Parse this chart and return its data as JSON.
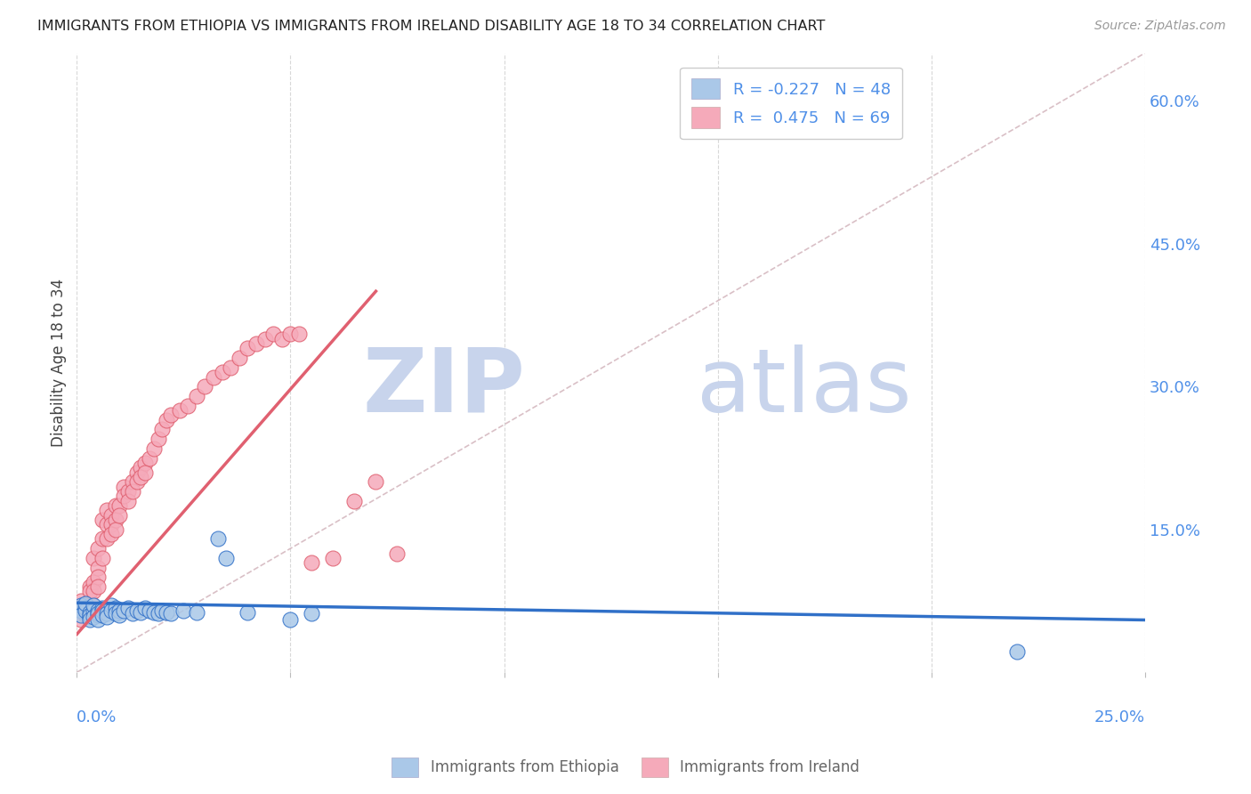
{
  "title": "IMMIGRANTS FROM ETHIOPIA VS IMMIGRANTS FROM IRELAND DISABILITY AGE 18 TO 34 CORRELATION CHART",
  "source": "Source: ZipAtlas.com",
  "ylabel": "Disability Age 18 to 34",
  "right_yticks": [
    0.0,
    0.15,
    0.3,
    0.45,
    0.6
  ],
  "right_yticklabels": [
    "",
    "15.0%",
    "30.0%",
    "45.0%",
    "60.0%"
  ],
  "xlim": [
    0.0,
    0.25
  ],
  "ylim": [
    0.0,
    0.65
  ],
  "ethiopia_R": -0.227,
  "ethiopia_N": 48,
  "ireland_R": 0.475,
  "ireland_N": 69,
  "ethiopia_color": "#aac8e8",
  "ireland_color": "#f5aaba",
  "ethiopia_line_color": "#3070c8",
  "ireland_line_color": "#e06070",
  "diagonal_color": "#d0b0b8",
  "watermark_color": "#c8d8f0",
  "legend_label_ethiopia": "Immigrants from Ethiopia",
  "legend_label_ireland": "Immigrants from Ireland",
  "ethiopia_x": [
    0.001,
    0.001,
    0.001,
    0.002,
    0.002,
    0.002,
    0.003,
    0.003,
    0.003,
    0.003,
    0.004,
    0.004,
    0.004,
    0.005,
    0.005,
    0.005,
    0.005,
    0.006,
    0.006,
    0.006,
    0.007,
    0.007,
    0.008,
    0.008,
    0.009,
    0.009,
    0.01,
    0.01,
    0.011,
    0.012,
    0.013,
    0.014,
    0.015,
    0.016,
    0.017,
    0.018,
    0.019,
    0.02,
    0.021,
    0.022,
    0.025,
    0.028,
    0.033,
    0.035,
    0.04,
    0.05,
    0.055,
    0.22
  ],
  "ethiopia_y": [
    0.065,
    0.07,
    0.06,
    0.068,
    0.065,
    0.072,
    0.058,
    0.063,
    0.06,
    0.055,
    0.065,
    0.07,
    0.058,
    0.065,
    0.06,
    0.062,
    0.055,
    0.068,
    0.065,
    0.06,
    0.062,
    0.058,
    0.07,
    0.065,
    0.068,
    0.062,
    0.065,
    0.06,
    0.065,
    0.068,
    0.062,
    0.065,
    0.063,
    0.068,
    0.065,
    0.063,
    0.062,
    0.065,
    0.063,
    0.062,
    0.065,
    0.063,
    0.14,
    0.12,
    0.063,
    0.055,
    0.062,
    0.022
  ],
  "ireland_x": [
    0.001,
    0.001,
    0.001,
    0.002,
    0.002,
    0.002,
    0.003,
    0.003,
    0.003,
    0.003,
    0.004,
    0.004,
    0.004,
    0.005,
    0.005,
    0.005,
    0.005,
    0.006,
    0.006,
    0.006,
    0.007,
    0.007,
    0.007,
    0.008,
    0.008,
    0.008,
    0.009,
    0.009,
    0.009,
    0.01,
    0.01,
    0.011,
    0.011,
    0.012,
    0.012,
    0.013,
    0.013,
    0.014,
    0.014,
    0.015,
    0.015,
    0.016,
    0.016,
    0.017,
    0.018,
    0.019,
    0.02,
    0.021,
    0.022,
    0.024,
    0.026,
    0.028,
    0.03,
    0.032,
    0.034,
    0.036,
    0.038,
    0.04,
    0.042,
    0.044,
    0.046,
    0.048,
    0.05,
    0.052,
    0.055,
    0.06,
    0.065,
    0.07,
    0.075
  ],
  "ireland_y": [
    0.065,
    0.055,
    0.075,
    0.07,
    0.065,
    0.06,
    0.09,
    0.075,
    0.085,
    0.065,
    0.12,
    0.095,
    0.085,
    0.13,
    0.11,
    0.1,
    0.09,
    0.16,
    0.14,
    0.12,
    0.17,
    0.155,
    0.14,
    0.165,
    0.155,
    0.145,
    0.175,
    0.16,
    0.15,
    0.175,
    0.165,
    0.195,
    0.185,
    0.19,
    0.18,
    0.2,
    0.19,
    0.21,
    0.2,
    0.215,
    0.205,
    0.22,
    0.21,
    0.225,
    0.235,
    0.245,
    0.255,
    0.265,
    0.27,
    0.275,
    0.28,
    0.29,
    0.3,
    0.31,
    0.315,
    0.32,
    0.33,
    0.34,
    0.345,
    0.35,
    0.355,
    0.35,
    0.355,
    0.355,
    0.115,
    0.12,
    0.18,
    0.2,
    0.125
  ]
}
